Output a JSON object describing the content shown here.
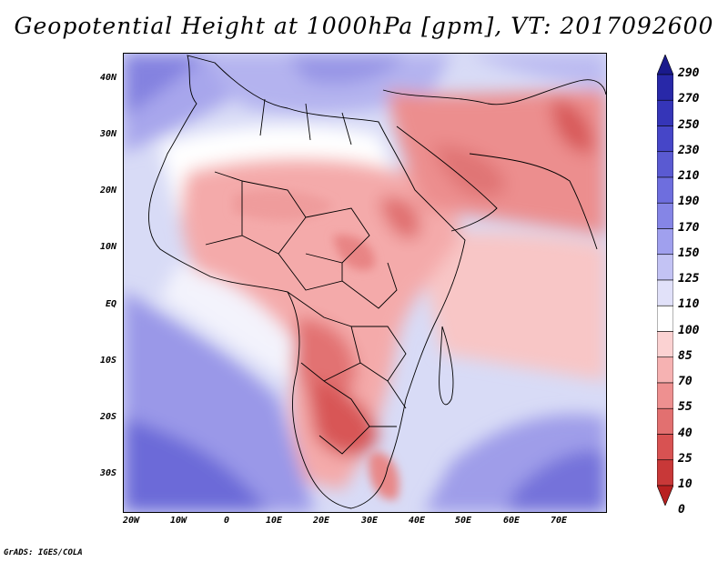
{
  "title": "Geopotential Height at 1000hPa [gpm], VT: 2017092600",
  "credit": "GrADS: IGES/COLA",
  "lat_labels": [
    "40N",
    "30N",
    "20N",
    "10N",
    "EQ",
    "10S",
    "20S",
    "30S"
  ],
  "lon_labels": [
    "20W",
    "10W",
    "0",
    "10E",
    "20E",
    "30E",
    "40E",
    "50E",
    "60E",
    "70E"
  ],
  "colorbar": {
    "labels": [
      "290",
      "270",
      "250",
      "230",
      "210",
      "190",
      "170",
      "150",
      "125",
      "110",
      "100",
      "85",
      "70",
      "55",
      "40",
      "25",
      "10",
      "0"
    ],
    "colors": [
      "#1a1a8c",
      "#2828a8",
      "#3535b8",
      "#4646c8",
      "#5a5ad2",
      "#6e6ede",
      "#8585e6",
      "#a0a0ee",
      "#c3c3f4",
      "#e1e1f9",
      "#ffffff",
      "#fbd2d2",
      "#f6b2b2",
      "#ee9090",
      "#e27070",
      "#d85252",
      "#c83838",
      "#b82020"
    ]
  },
  "colors": {
    "ocean_blue": "#8f8ee6",
    "land_red": "#e88a8a",
    "deep_red": "#d45050",
    "pale_red": "#f8c8c8"
  }
}
